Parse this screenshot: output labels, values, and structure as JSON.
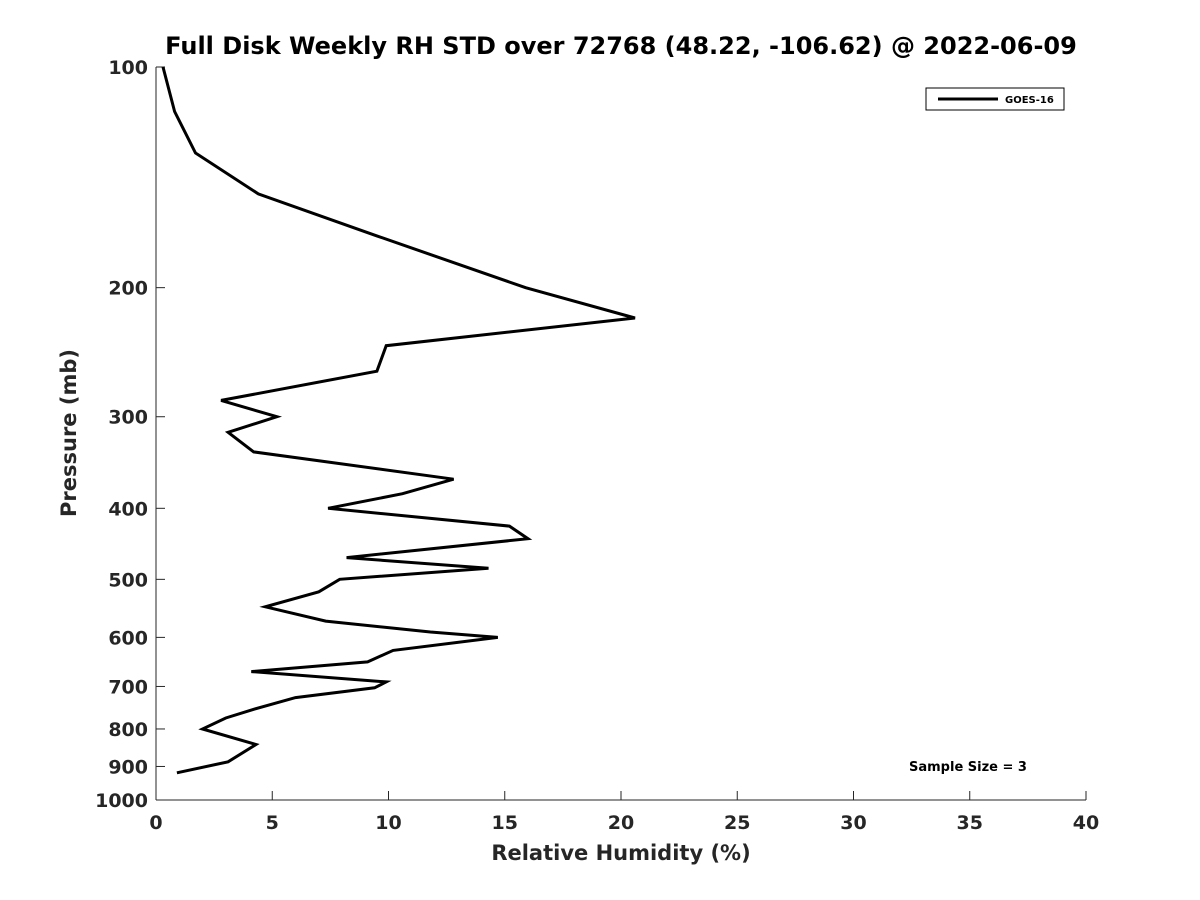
{
  "chart_data": {
    "type": "line",
    "title": "Full Disk Weekly RH STD over 72768 (48.22, -106.62) @ 2022-06-09",
    "xlabel": "Relative Humidity (%)",
    "ylabel": "Pressure (mb)",
    "xlim": [
      0,
      40
    ],
    "ylim": [
      100,
      1000
    ],
    "y_scale": "log",
    "y_reversed": true,
    "x_ticks": [
      0,
      5,
      10,
      15,
      20,
      25,
      30,
      35,
      40
    ],
    "x_tick_labels": [
      "0",
      "5",
      "10",
      "15",
      "20",
      "25",
      "30",
      "35",
      "40"
    ],
    "y_ticks": [
      100,
      200,
      300,
      400,
      500,
      600,
      700,
      800,
      900,
      1000
    ],
    "y_tick_labels": [
      "100",
      "200",
      "300",
      "400",
      "500",
      "600",
      "700",
      "800",
      "900",
      "1000"
    ],
    "grid": false,
    "legend_position": "top-right",
    "series": [
      {
        "name": "GOES-16",
        "color": "#000000",
        "x": [
          0.3,
          0.8,
          1.7,
          4.4,
          9.5,
          15.9,
          20.6,
          9.9,
          9.5,
          2.8,
          5.2,
          3.1,
          4.2,
          12.8,
          10.6,
          7.4,
          15.2,
          16.0,
          8.2,
          14.3,
          7.9,
          7.0,
          4.7,
          7.3,
          11.8,
          14.7,
          10.2,
          9.1,
          4.1,
          9.9,
          9.4,
          6.0,
          4.2,
          3.0,
          2.0,
          4.3,
          3.1,
          0.9
        ],
        "y": [
          100,
          115,
          131,
          149,
          170,
          200,
          220,
          240,
          260,
          285,
          300,
          315,
          335,
          365,
          382,
          400,
          423,
          440,
          467,
          483,
          500,
          520,
          545,
          570,
          590,
          600,
          625,
          648,
          668,
          690,
          703,
          725,
          752,
          773,
          800,
          840,
          887,
          918
        ]
      }
    ],
    "annotations": [
      "Sample Size = 3"
    ]
  }
}
